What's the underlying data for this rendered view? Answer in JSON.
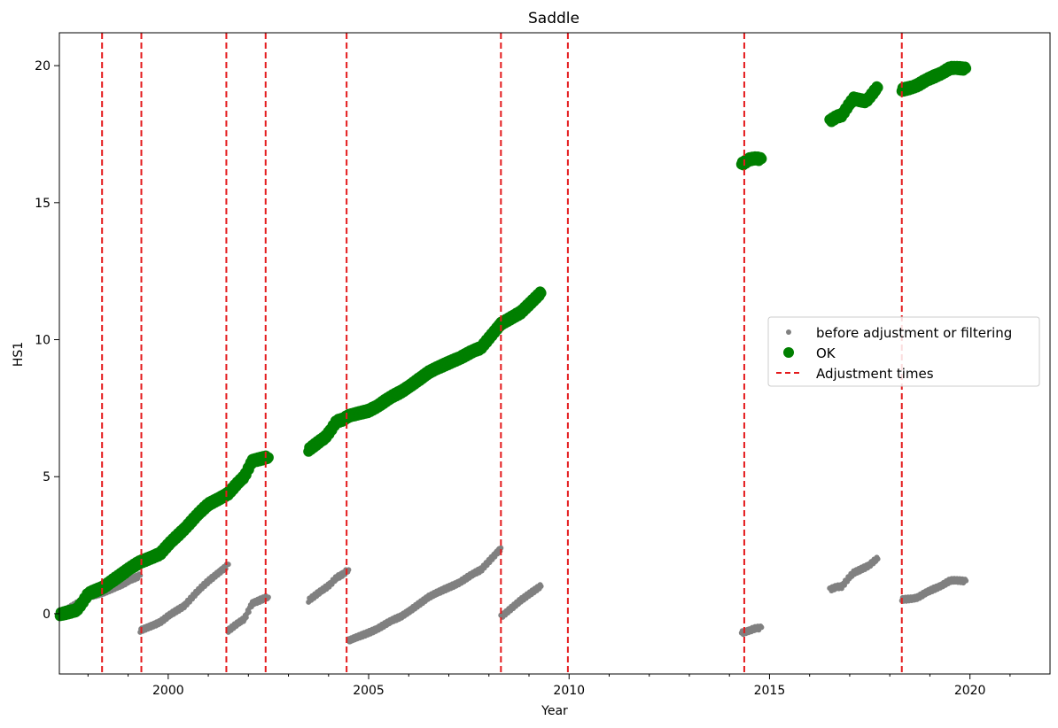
{
  "chart_data": {
    "type": "scatter",
    "title": "Saddle",
    "xlabel": "Year",
    "ylabel": "HS1",
    "xlim": [
      "1997-04-15",
      "2021-12-31"
    ],
    "ylim": [
      -2.2,
      21.2
    ],
    "x_ticks": [
      "2000",
      "2005",
      "2010",
      "2015",
      "2020"
    ],
    "y_ticks": [
      0,
      5,
      10,
      15,
      20
    ],
    "legend": {
      "placement": "center-right",
      "entries": [
        "before adjustment or filtering",
        "OK",
        "Adjustment times"
      ]
    },
    "colors": {
      "before": "#808080",
      "ok": "#007f00",
      "adjust": "#e41a1c"
    },
    "series": [
      {
        "name": "before adjustment or filtering",
        "marker": "small-dot",
        "segments": [
          {
            "x": [
              1997.3,
              1998.0,
              1998.4,
              1998.9,
              1999.3
            ],
            "y": [
              0.0,
              0.6,
              0.8,
              1.1,
              1.4
            ]
          },
          {
            "x": [
              1999.3,
              1999.8,
              2000.4,
              2001.0,
              2001.5
            ],
            "y": [
              -0.6,
              -0.3,
              0.3,
              1.2,
              1.8
            ]
          },
          {
            "x": [
              2001.5,
              2001.9,
              2002.1,
              2002.5
            ],
            "y": [
              -0.6,
              -0.2,
              0.4,
              0.6
            ]
          },
          {
            "x": [
              2003.5,
              2003.9,
              2004.2,
              2004.5
            ],
            "y": [
              0.5,
              0.9,
              1.3,
              1.6
            ]
          },
          {
            "x": [
              2004.5,
              2005.0,
              2005.8,
              2006.5,
              2007.2,
              2007.8,
              2008.3
            ],
            "y": [
              -1.0,
              -0.7,
              -0.1,
              0.6,
              1.1,
              1.6,
              2.4
            ]
          },
          {
            "x": [
              2008.3,
              2008.8,
              2009.3
            ],
            "y": [
              -0.1,
              0.5,
              1.0
            ]
          },
          {
            "x": [
              2014.3,
              2014.5,
              2014.8
            ],
            "y": [
              -0.7,
              -0.6,
              -0.5
            ]
          },
          {
            "x": [
              2016.5,
              2016.8,
              2017.1,
              2017.4,
              2017.7
            ],
            "y": [
              0.9,
              1.0,
              1.5,
              1.7,
              2.0
            ]
          },
          {
            "x": [
              2018.3,
              2018.7,
              2019.1,
              2019.5,
              2019.9
            ],
            "y": [
              0.5,
              0.6,
              0.9,
              1.2,
              1.2
            ]
          }
        ]
      },
      {
        "name": "OK",
        "marker": "large-dot",
        "segments": [
          {
            "x": [
              1997.3,
              1997.7,
              1998.0,
              1998.4,
              1998.9,
              1999.3,
              1999.8,
              2000.4,
              2001.0,
              2001.5,
              2001.9,
              2002.1,
              2002.5
            ],
            "y": [
              0.0,
              0.1,
              0.7,
              1.0,
              1.5,
              1.9,
              2.2,
              3.1,
              4.0,
              4.4,
              5.0,
              5.6,
              5.7
            ]
          },
          {
            "x": [
              2003.5,
              2003.9,
              2004.2,
              2004.5,
              2005.0,
              2005.8,
              2006.5,
              2007.2,
              2007.8,
              2008.3,
              2008.8,
              2009.3
            ],
            "y": [
              6.0,
              6.4,
              7.0,
              7.2,
              7.4,
              8.1,
              8.8,
              9.3,
              9.7,
              10.6,
              11.0,
              11.7
            ]
          },
          {
            "x": [
              2014.3,
              2014.5,
              2014.8
            ],
            "y": [
              16.4,
              16.6,
              16.6
            ]
          },
          {
            "x": [
              2016.5,
              2016.8,
              2017.1,
              2017.4,
              2017.7
            ],
            "y": [
              18.0,
              18.2,
              18.8,
              18.7,
              19.2
            ]
          },
          {
            "x": [
              2018.3,
              2018.7,
              2019.1,
              2019.5,
              2019.9
            ],
            "y": [
              19.1,
              19.3,
              19.6,
              19.9,
              19.9
            ]
          }
        ]
      }
    ],
    "adjustment_times": [
      1998.35,
      1999.33,
      2001.45,
      2002.43,
      2004.45,
      2008.3,
      2009.97,
      2014.37,
      2018.3
    ]
  }
}
